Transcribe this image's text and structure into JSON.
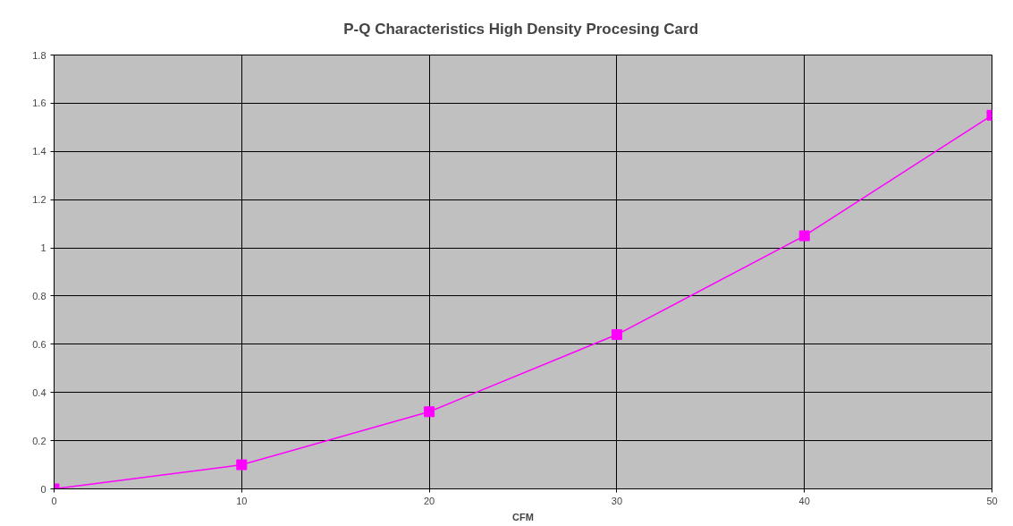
{
  "chart_data": {
    "type": "line",
    "title": "P-Q Characteristics  High Density Procesing Card",
    "xlabel": "CFM",
    "x": [
      0,
      10,
      20,
      30,
      40,
      50
    ],
    "series": [
      {
        "color": "#ff00ff",
        "values": [
          0,
          0.1,
          0.32,
          0.64,
          1.05,
          1.55
        ]
      }
    ],
    "xlim": [
      0,
      50
    ],
    "xticks": [
      0,
      10,
      20,
      30,
      40,
      50
    ],
    "ylim": [
      0,
      1.8
    ],
    "yticks": [
      0,
      {
        "value": 0.2,
        "label": "0.2"
      },
      {
        "value": 0.4,
        "label": "0.4"
      },
      {
        "value": 0.6,
        "label": "0.6"
      },
      {
        "value": 0.8,
        "label": "0.8"
      },
      1,
      {
        "value": 1.2,
        "label": "1.2"
      },
      {
        "value": 1.4,
        "label": "1.4"
      },
      {
        "value": 1.6,
        "label": "1.6"
      },
      {
        "value": 1.8,
        "label": "1.8"
      }
    ],
    "grid": true,
    "marker": "square",
    "line_style": "solid"
  }
}
